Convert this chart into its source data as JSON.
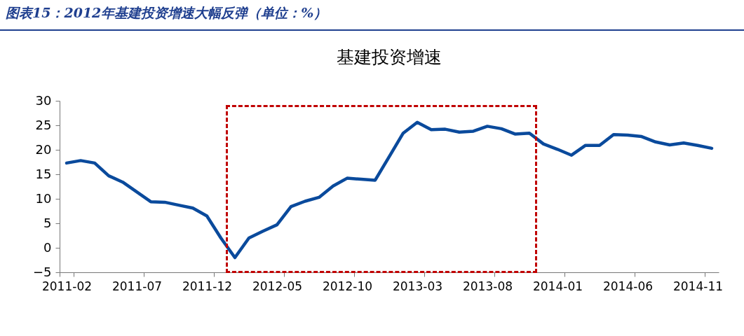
{
  "chart_data": {
    "type": "line",
    "title": "图表15：2012年基建投资增速大幅反弹（单位：%）",
    "subtitle": "基建投资增速",
    "categories": [
      "2011-02",
      null,
      null,
      null,
      null,
      "2011-07",
      null,
      null,
      null,
      null,
      "2011-12",
      null,
      null,
      null,
      null,
      "2012-05",
      null,
      null,
      null,
      null,
      "2012-10",
      null,
      null,
      null,
      null,
      "2013-03",
      null,
      null,
      null,
      null,
      "2013-08",
      null,
      null,
      null,
      null,
      "2014-01",
      null,
      null,
      null,
      null,
      "2014-06",
      null,
      null,
      null,
      null,
      "2014-11",
      null
    ],
    "series": [
      {
        "color": "#0a4a9c",
        "values": [
          17.3,
          17.8,
          17.3,
          14.7,
          13.4,
          11.4,
          9.4,
          9.3,
          8.7,
          8.1,
          6.5,
          2.0,
          -2.0,
          2.0,
          3.4,
          4.7,
          8.4,
          9.5,
          10.3,
          12.6,
          14.2,
          14.0,
          13.8,
          18.6,
          23.4,
          25.6,
          24.1,
          24.2,
          23.6,
          23.8,
          24.8,
          24.3,
          23.2,
          23.4,
          21.2,
          20.1,
          18.9,
          20.9,
          20.9,
          23.1,
          23.0,
          22.7,
          21.6,
          21.0,
          21.4,
          20.9,
          20.3
        ]
      }
    ],
    "ylim": [
      -5,
      30
    ],
    "yticks": [
      -5,
      0,
      5,
      10,
      15,
      20,
      25,
      30
    ],
    "grid": false,
    "marker": "none",
    "line_style": "solid"
  }
}
